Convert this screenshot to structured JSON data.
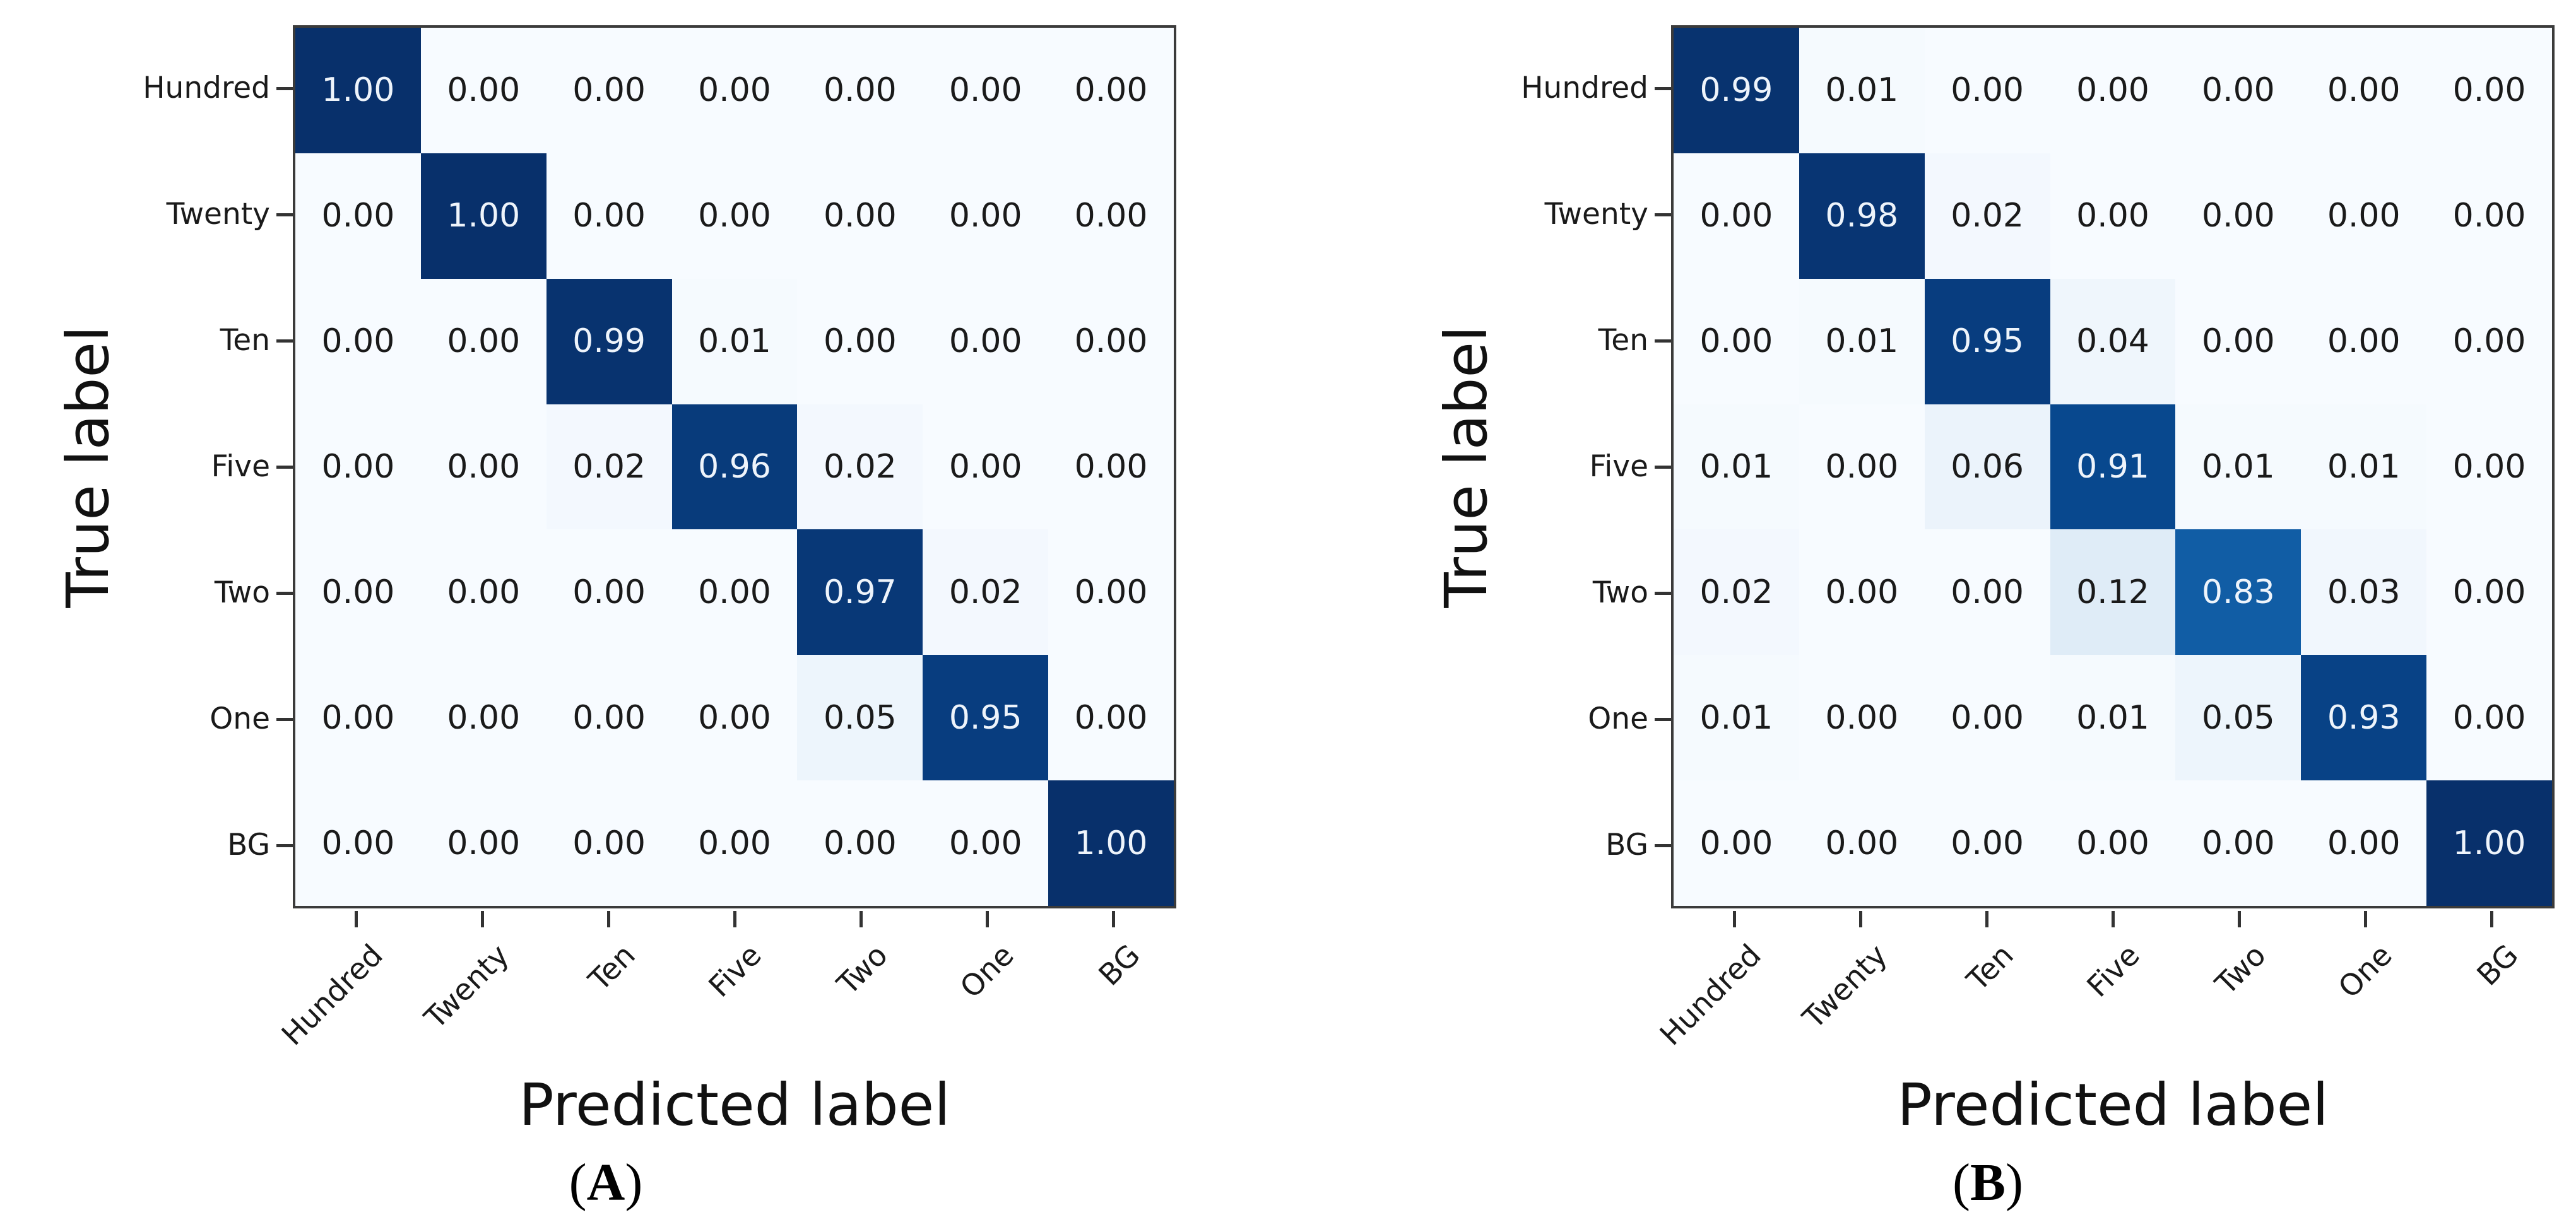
{
  "figure": {
    "description_left_caption": "(A)",
    "description_right_caption": "(B)"
  },
  "chart_data": [
    {
      "type": "heatmap",
      "panel": "A",
      "caption": "(A)",
      "caption_open": "(",
      "caption_letter": "A",
      "caption_close": ")",
      "xlabel": "Predicted label",
      "ylabel": "True label",
      "x_categories": [
        "Hundred",
        "Twenty",
        "Ten",
        "Five",
        "Two",
        "One",
        "BG"
      ],
      "y_categories": [
        "Hundred",
        "Twenty",
        "Ten",
        "Five",
        "Two",
        "One",
        "BG"
      ],
      "matrix": [
        [
          1.0,
          0.0,
          0.0,
          0.0,
          0.0,
          0.0,
          0.0
        ],
        [
          0.0,
          1.0,
          0.0,
          0.0,
          0.0,
          0.0,
          0.0
        ],
        [
          0.0,
          0.0,
          0.99,
          0.01,
          0.0,
          0.0,
          0.0
        ],
        [
          0.0,
          0.0,
          0.02,
          0.96,
          0.02,
          0.0,
          0.0
        ],
        [
          0.0,
          0.0,
          0.0,
          0.0,
          0.97,
          0.02,
          0.0
        ],
        [
          0.0,
          0.0,
          0.0,
          0.0,
          0.05,
          0.95,
          0.0
        ],
        [
          0.0,
          0.0,
          0.0,
          0.0,
          0.0,
          0.0,
          1.0
        ]
      ],
      "value_format": "0.00",
      "colormap": "Blues",
      "vmin": 0,
      "vmax": 1,
      "grid": false,
      "legend": "none"
    },
    {
      "type": "heatmap",
      "panel": "B",
      "caption": "(B)",
      "caption_open": "(",
      "caption_letter": "B",
      "caption_close": ")",
      "xlabel": "Predicted label",
      "ylabel": "True label",
      "x_categories": [
        "Hundred",
        "Twenty",
        "Ten",
        "Five",
        "Two",
        "One",
        "BG"
      ],
      "y_categories": [
        "Hundred",
        "Twenty",
        "Ten",
        "Five",
        "Two",
        "One",
        "BG"
      ],
      "matrix": [
        [
          0.99,
          0.01,
          0.0,
          0.0,
          0.0,
          0.0,
          0.0
        ],
        [
          0.0,
          0.98,
          0.02,
          0.0,
          0.0,
          0.0,
          0.0
        ],
        [
          0.0,
          0.01,
          0.95,
          0.04,
          0.0,
          0.0,
          0.0
        ],
        [
          0.01,
          0.0,
          0.06,
          0.91,
          0.01,
          0.01,
          0.0
        ],
        [
          0.02,
          0.0,
          0.0,
          0.12,
          0.83,
          0.03,
          0.0
        ],
        [
          0.01,
          0.0,
          0.0,
          0.01,
          0.05,
          0.93,
          0.0
        ],
        [
          0.0,
          0.0,
          0.0,
          0.0,
          0.0,
          0.0,
          1.0
        ]
      ],
      "value_format": "0.00",
      "colormap": "Blues",
      "vmin": 0,
      "vmax": 1,
      "grid": false,
      "legend": "none"
    }
  ],
  "colors": {
    "background": "#ffffff",
    "frame": "#3b3b3b",
    "tick": "#333333",
    "cell_text_dark": "#1a1a1a",
    "cell_text_light": "#eef4fb",
    "diagonal_dark_navy": "#08306b",
    "mid_blue_observed": "#1a63ab",
    "lightest_cell": "#f7fbff",
    "blues_anchors": [
      [
        0.0,
        [
          247,
          251,
          255
        ]
      ],
      [
        0.125,
        [
          222,
          235,
          247
        ]
      ],
      [
        0.25,
        [
          198,
          219,
          239
        ]
      ],
      [
        0.375,
        [
          158,
          202,
          225
        ]
      ],
      [
        0.5,
        [
          107,
          174,
          214
        ]
      ],
      [
        0.625,
        [
          66,
          146,
          198
        ]
      ],
      [
        0.75,
        [
          33,
          113,
          181
        ]
      ],
      [
        0.875,
        [
          8,
          81,
          156
        ]
      ],
      [
        1.0,
        [
          8,
          48,
          107
        ]
      ]
    ],
    "text_threshold": 0.5
  }
}
